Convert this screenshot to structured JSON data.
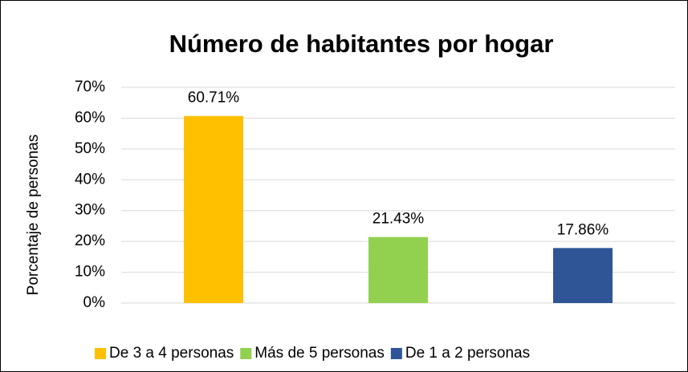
{
  "chart_data": {
    "type": "bar",
    "title": "Número de habitantes por hogar",
    "y_label": "Porcentaje de personas",
    "categories": [
      "De 3 a 4 personas",
      "Más de 5 personas",
      "De 1 a 2 personas"
    ],
    "values": [
      60.71,
      21.43,
      17.86
    ],
    "value_labels": [
      "60.71%",
      "21.43%",
      "17.86%"
    ],
    "colors": [
      "#ffc000",
      "#92d050",
      "#2f5597"
    ],
    "ylim": [
      0,
      70
    ],
    "yticks": [
      {
        "value": 0,
        "label": "0%"
      },
      {
        "value": 10,
        "label": "10%"
      },
      {
        "value": 20,
        "label": "20%"
      },
      {
        "value": 30,
        "label": "30%"
      },
      {
        "value": 40,
        "label": "40%"
      },
      {
        "value": 50,
        "label": "50%"
      },
      {
        "value": 60,
        "label": "60%"
      },
      {
        "value": 70,
        "label": "70%"
      }
    ],
    "grid": true,
    "legend": "bottom"
  }
}
